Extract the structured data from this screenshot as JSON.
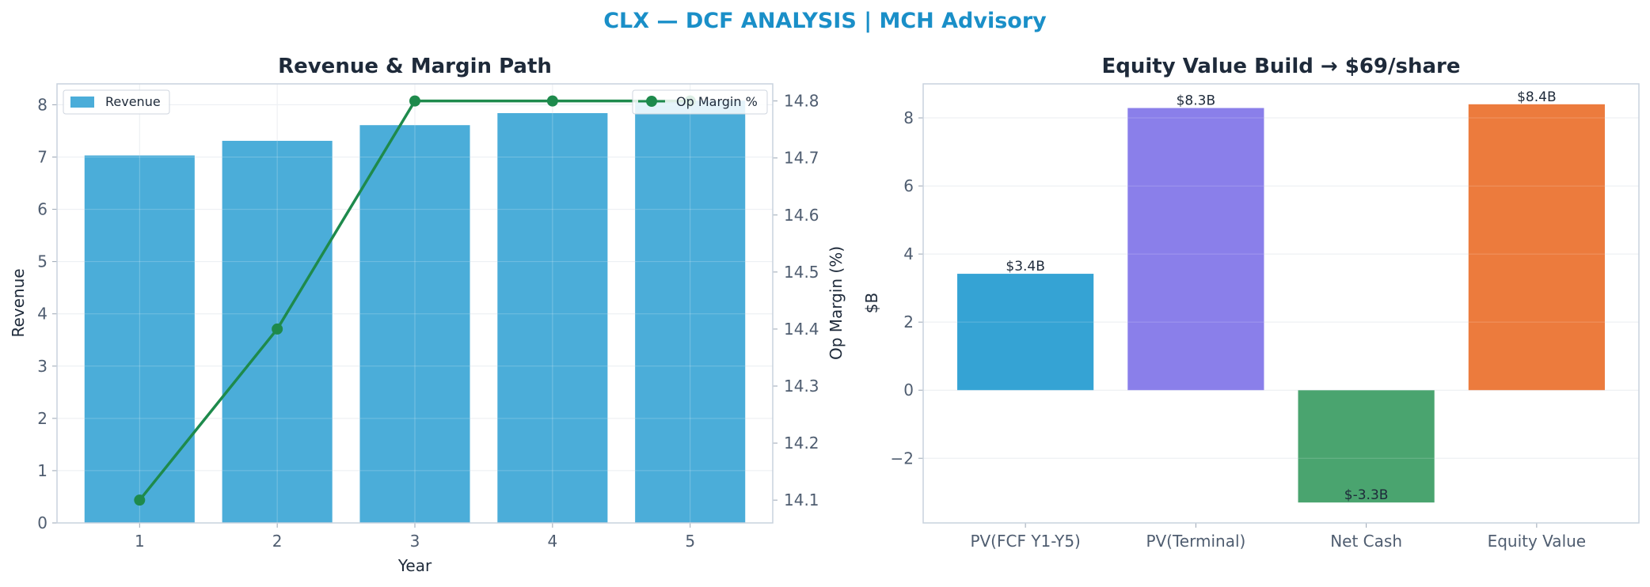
{
  "title": "CLX — DCF ANALYSIS | MCH Advisory",
  "colors": {
    "title": "#1a8fc8",
    "revenue_bar": "#4badd9",
    "margin_line": "#1e8a4c",
    "pv_fcf": "#35a3d4",
    "pv_terminal": "#8a7fea",
    "net_cash": "#4aa46f",
    "equity_value": "#ec7b3d"
  },
  "chart_data": [
    {
      "type": "bar",
      "title": "Revenue & Margin Path",
      "xlabel": "Year",
      "ylabel": "Revenue",
      "y2label": "Op Margin (%)",
      "categories": [
        "1",
        "2",
        "3",
        "4",
        "5"
      ],
      "ylim": [
        0,
        8.4
      ],
      "y2lim": [
        14.06,
        14.83
      ],
      "yticks": [
        0,
        1,
        2,
        3,
        4,
        5,
        6,
        7,
        8
      ],
      "y2ticks": [
        14.1,
        14.2,
        14.3,
        14.4,
        14.5,
        14.6,
        14.7,
        14.8
      ],
      "grid": true,
      "series": [
        {
          "name": "Revenue",
          "type": "bar",
          "axis": "left",
          "values": [
            7.03,
            7.31,
            7.61,
            7.84,
            8.08
          ]
        },
        {
          "name": "Op Margin %",
          "type": "line",
          "axis": "right",
          "values": [
            14.1,
            14.4,
            14.8,
            14.8,
            14.8
          ]
        }
      ],
      "legend": [
        {
          "name": "Revenue",
          "placement": "top-left"
        },
        {
          "name": "Op Margin %",
          "placement": "top-right"
        }
      ]
    },
    {
      "type": "bar",
      "title": "Equity Value Build → $69/share",
      "xlabel": "",
      "ylabel": "$B",
      "categories": [
        "PV(FCF Y1-Y5)",
        "PV(Terminal)",
        "Net Cash",
        "Equity Value"
      ],
      "values": [
        3.42,
        8.29,
        -3.3,
        8.4
      ],
      "labels": [
        "$3.4B",
        "$8.3B",
        "$-3.3B",
        "$8.4B"
      ],
      "ylim": [
        -3.9,
        9.0
      ],
      "yticks": [
        -2,
        0,
        2,
        4,
        6,
        8
      ],
      "ytick_labels": [
        "−2",
        "0",
        "2",
        "4",
        "6",
        "8"
      ],
      "grid": true
    }
  ]
}
